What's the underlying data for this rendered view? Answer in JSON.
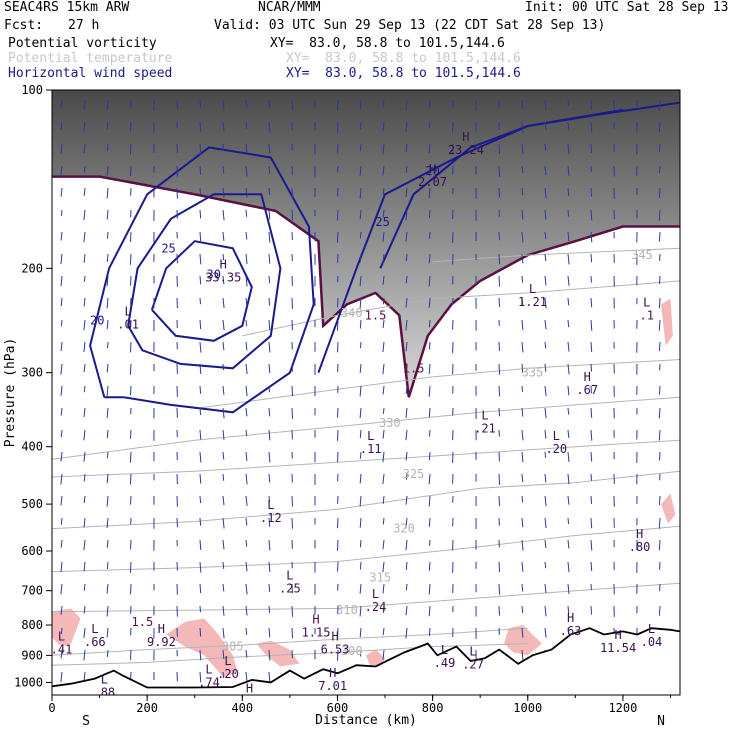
{
  "header": {
    "model": "SEAC4RS 15km ARW",
    "center": "NCAR/MMM",
    "init": "Init: 00 UTC Sat 28 Sep 13",
    "fcst_label": "Fcst:",
    "fcst_value": "27 h",
    "valid": "Valid: 03 UTC Sun 29 Sep 13 (22 CDT Sat 28 Sep 13)",
    "fields": [
      {
        "name": "Potential vorticity",
        "xy": "XY=  83.0, 58.8 to 101.5,144.6",
        "color": "#000000"
      },
      {
        "name": "Potential temperature",
        "xy": "XY=  83.0, 58.8 to 101.5,144.6",
        "color": "#c8c8c8"
      },
      {
        "name": "Horizontal wind speed",
        "xy": "XY=  83.0, 58.8 to 101.5,144.6",
        "color": "#1a1a8c"
      }
    ]
  },
  "chart_data": {
    "type": "cross-section",
    "title": "",
    "xlabel": "Distance (km)",
    "ylabel": "Pressure (hPa)",
    "xlim": [
      0,
      1320
    ],
    "ylim": [
      1050,
      100
    ],
    "y_scale": "log",
    "x_ticks": [
      0,
      200,
      400,
      600,
      800,
      1000,
      1200
    ],
    "y_ticks": [
      100,
      200,
      300,
      400,
      500,
      600,
      700,
      800,
      900,
      1000
    ],
    "x_end_labels": {
      "left": "S",
      "right": "N"
    },
    "colors": {
      "pv_fill": "#555555",
      "pv_contour": "#5a1040",
      "theta": "#b4b4b4",
      "wind": "#1a1a8c",
      "terrain": "#000000",
      "pink": "#f4b8b8",
      "vectors": "#2a3aa0"
    },
    "terrain": [
      {
        "x": 0,
        "p": 1015
      },
      {
        "x": 40,
        "p": 1005
      },
      {
        "x": 90,
        "p": 985
      },
      {
        "x": 130,
        "p": 955
      },
      {
        "x": 150,
        "p": 975
      },
      {
        "x": 200,
        "p": 1020
      },
      {
        "x": 300,
        "p": 1020
      },
      {
        "x": 380,
        "p": 1018
      },
      {
        "x": 420,
        "p": 990
      },
      {
        "x": 460,
        "p": 1000
      },
      {
        "x": 500,
        "p": 955
      },
      {
        "x": 530,
        "p": 985
      },
      {
        "x": 570,
        "p": 950
      },
      {
        "x": 600,
        "p": 965
      },
      {
        "x": 640,
        "p": 935
      },
      {
        "x": 680,
        "p": 940
      },
      {
        "x": 740,
        "p": 890
      },
      {
        "x": 790,
        "p": 860
      },
      {
        "x": 810,
        "p": 900
      },
      {
        "x": 850,
        "p": 870
      },
      {
        "x": 880,
        "p": 920
      },
      {
        "x": 910,
        "p": 910
      },
      {
        "x": 940,
        "p": 880
      },
      {
        "x": 980,
        "p": 930
      },
      {
        "x": 1010,
        "p": 900
      },
      {
        "x": 1050,
        "p": 880
      },
      {
        "x": 1090,
        "p": 830
      },
      {
        "x": 1130,
        "p": 810
      },
      {
        "x": 1160,
        "p": 830
      },
      {
        "x": 1200,
        "p": 820
      },
      {
        "x": 1230,
        "p": 830
      },
      {
        "x": 1260,
        "p": 810
      },
      {
        "x": 1300,
        "p": 815
      },
      {
        "x": 1320,
        "p": 820
      }
    ],
    "theta_contours": [
      {
        "label": "300",
        "label_at": [
          630,
          885
        ],
        "points": [
          [
            0,
            935
          ],
          [
            200,
            925
          ],
          [
            400,
            905
          ],
          [
            600,
            890
          ],
          [
            800,
            870
          ],
          [
            1000,
            860
          ]
        ]
      },
      {
        "label": "305",
        "label_at": [
          380,
          870
        ],
        "points": [
          [
            0,
            900
          ],
          [
            200,
            880
          ],
          [
            400,
            865
          ],
          [
            600,
            845
          ],
          [
            800,
            830
          ],
          [
            1000,
            810
          ]
        ]
      },
      {
        "label": "310",
        "label_at": [
          620,
          755
        ],
        "points": [
          [
            0,
            760
          ],
          [
            300,
            755
          ],
          [
            600,
            750
          ],
          [
            900,
            720
          ],
          [
            1100,
            700
          ],
          [
            1320,
            680
          ]
        ]
      },
      {
        "label": "315",
        "label_at": [
          690,
          665
        ],
        "points": [
          [
            0,
            650
          ],
          [
            300,
            640
          ],
          [
            600,
            625
          ],
          [
            900,
            590
          ],
          [
            1100,
            565
          ],
          [
            1320,
            545
          ]
        ]
      },
      {
        "label": "320",
        "label_at": [
          740,
          550
        ],
        "points": [
          [
            0,
            550
          ],
          [
            300,
            535
          ],
          [
            600,
            510
          ],
          [
            900,
            470
          ],
          [
            1100,
            460
          ],
          [
            1320,
            440
          ]
        ]
      },
      {
        "label": "325",
        "label_at": [
          760,
          445
        ],
        "points": [
          [
            0,
            450
          ],
          [
            300,
            440
          ],
          [
            600,
            425
          ],
          [
            900,
            410
          ],
          [
            1100,
            400
          ],
          [
            1320,
            390
          ]
        ]
      },
      {
        "label": "330",
        "label_at": [
          710,
          365
        ],
        "points": [
          [
            0,
            420
          ],
          [
            300,
            390
          ],
          [
            600,
            370
          ],
          [
            900,
            350
          ],
          [
            1100,
            340
          ],
          [
            1320,
            330
          ]
        ]
      },
      {
        "label": "335",
        "label_at": [
          1010,
          300
        ],
        "points": [
          [
            300,
            345
          ],
          [
            600,
            320
          ],
          [
            800,
            305
          ],
          [
            1000,
            295
          ],
          [
            1320,
            285
          ]
        ]
      },
      {
        "label": "340",
        "label_at": [
          630,
          238
        ],
        "points": [
          [
            400,
            260
          ],
          [
            600,
            240
          ],
          [
            800,
            225
          ],
          [
            1000,
            220
          ],
          [
            1320,
            210
          ]
        ]
      },
      {
        "label": "345",
        "label_at": [
          1240,
          190
        ],
        "points": [
          [
            800,
            195
          ],
          [
            1000,
            190
          ],
          [
            1320,
            185
          ]
        ]
      }
    ],
    "wind_contours": [
      {
        "label": "20",
        "label_at": [
          95,
          245
        ],
        "points": [
          [
            110,
            330
          ],
          [
            80,
            270
          ],
          [
            120,
            200
          ],
          [
            200,
            150
          ],
          [
            330,
            125
          ],
          [
            460,
            130
          ],
          [
            540,
            170
          ],
          [
            550,
            230
          ],
          [
            500,
            300
          ],
          [
            380,
            350
          ],
          [
            250,
            340
          ],
          [
            150,
            330
          ],
          [
            110,
            330
          ]
        ]
      },
      {
        "label": "25",
        "label_at": [
          245,
          185
        ],
        "points": [
          [
            160,
            250
          ],
          [
            180,
            200
          ],
          [
            250,
            165
          ],
          [
            340,
            150
          ],
          [
            440,
            150
          ],
          [
            480,
            200
          ],
          [
            460,
            260
          ],
          [
            380,
            295
          ],
          [
            270,
            290
          ],
          [
            190,
            275
          ],
          [
            160,
            250
          ]
        ]
      },
      {
        "label": "30",
        "label_at": [
          340,
          205
        ],
        "points": [
          [
            210,
            235
          ],
          [
            240,
            200
          ],
          [
            300,
            180
          ],
          [
            380,
            185
          ],
          [
            420,
            215
          ],
          [
            400,
            250
          ],
          [
            340,
            265
          ],
          [
            260,
            260
          ],
          [
            210,
            235
          ]
        ]
      },
      {
        "label": "20",
        "label_at": [
          800,
          137
        ],
        "points": [
          [
            560,
            300
          ],
          [
            640,
            200
          ],
          [
            700,
            150
          ],
          [
            850,
            130
          ],
          [
            1000,
            115
          ],
          [
            1150,
            110
          ],
          [
            1320,
            105
          ]
        ]
      },
      {
        "label": "25",
        "label_at": [
          695,
          167
        ],
        "points": [
          [
            690,
            200
          ],
          [
            760,
            150
          ],
          [
            880,
            125
          ],
          [
            1000,
            115
          ],
          [
            1200,
            108
          ]
        ]
      }
    ],
    "pv_region": [
      [
        0,
        100
      ],
      [
        1320,
        100
      ],
      [
        1320,
        170
      ],
      [
        1200,
        170
      ],
      [
        1100,
        180
      ],
      [
        1000,
        190
      ],
      [
        900,
        210
      ],
      [
        840,
        230
      ],
      [
        790,
        260
      ],
      [
        750,
        330
      ],
      [
        730,
        240
      ],
      [
        680,
        220
      ],
      [
        620,
        230
      ],
      [
        570,
        250
      ],
      [
        560,
        180
      ],
      [
        470,
        160
      ],
      [
        300,
        150
      ],
      [
        100,
        140
      ],
      [
        0,
        140
      ]
    ],
    "pink_areas": [
      [
        [
          0,
          760
        ],
        [
          40,
          750
        ],
        [
          60,
          780
        ],
        [
          40,
          860
        ],
        [
          20,
          870
        ],
        [
          0,
          840
        ]
      ],
      [
        [
          240,
          830
        ],
        [
          280,
          790
        ],
        [
          320,
          780
        ],
        [
          350,
          830
        ],
        [
          380,
          900
        ],
        [
          390,
          960
        ],
        [
          360,
          980
        ],
        [
          320,
          900
        ],
        [
          280,
          870
        ]
      ],
      [
        [
          430,
          860
        ],
        [
          460,
          850
        ],
        [
          500,
          880
        ],
        [
          520,
          930
        ],
        [
          480,
          940
        ],
        [
          450,
          900
        ]
      ],
      [
        [
          660,
          900
        ],
        [
          680,
          880
        ],
        [
          700,
          910
        ],
        [
          690,
          950
        ],
        [
          670,
          945
        ]
      ],
      [
        [
          960,
          810
        ],
        [
          990,
          800
        ],
        [
          1010,
          830
        ],
        [
          1030,
          860
        ],
        [
          1000,
          900
        ],
        [
          970,
          890
        ],
        [
          950,
          860
        ]
      ],
      [
        [
          1280,
          500
        ],
        [
          1300,
          480
        ],
        [
          1310,
          520
        ],
        [
          1295,
          540
        ]
      ],
      [
        [
          1280,
          230
        ],
        [
          1300,
          225
        ],
        [
          1305,
          260
        ],
        [
          1290,
          270
        ]
      ]
    ],
    "annotations": [
      {
        "text": "H",
        "sub": "2.07",
        "x": 800,
        "p": 138
      },
      {
        "text": "H",
        "sub": "23.24",
        "x": 870,
        "p": 122
      },
      {
        "text": "H",
        "sub": "33.35",
        "x": 360,
        "p": 200
      },
      {
        "text": "L",
        "sub": ".01",
        "x": 160,
        "p": 240
      },
      {
        "text": "L",
        "sub": "1.21",
        "x": 1010,
        "p": 220
      },
      {
        "text": "L",
        "sub": ".1",
        "x": 1250,
        "p": 232
      },
      {
        "text": "H",
        "sub": ".67",
        "x": 1125,
        "p": 310
      },
      {
        "text": "L",
        "sub": ".21",
        "x": 910,
        "p": 360
      },
      {
        "text": "L",
        "sub": ".20",
        "x": 1060,
        "p": 390
      },
      {
        "text": "L",
        "sub": ".11",
        "x": 670,
        "p": 390
      },
      {
        "text": "L",
        "sub": ".12",
        "x": 460,
        "p": 510
      },
      {
        "text": "H",
        "sub": ".80",
        "x": 1235,
        "p": 570
      },
      {
        "text": "L",
        "sub": ".25",
        "x": 500,
        "p": 670
      },
      {
        "text": "L",
        "sub": ".24",
        "x": 680,
        "p": 720
      },
      {
        "text": "H",
        "sub": "1.15",
        "x": 555,
        "p": 795
      },
      {
        "text": "H",
        "sub": "9.92",
        "x": 230,
        "p": 825
      },
      {
        "text": "H",
        "sub": ".63",
        "x": 1090,
        "p": 790
      },
      {
        "text": "L",
        "sub": ".66",
        "x": 90,
        "p": 825
      },
      {
        "text": "L",
        "sub": ".41",
        "x": 20,
        "p": 850
      },
      {
        "text": "H",
        "sub": "6.53",
        "x": 595,
        "p": 850
      },
      {
        "text": "L",
        "sub": ".04",
        "x": 1260,
        "p": 825
      },
      {
        "text": "H",
        "sub": "11.54",
        "x": 1190,
        "p": 845
      },
      {
        "text": "L",
        "sub": ".49",
        "x": 825,
        "p": 895
      },
      {
        "text": "L",
        "sub": ".27",
        "x": 885,
        "p": 900
      },
      {
        "text": "L",
        "sub": ".20",
        "x": 370,
        "p": 935
      },
      {
        "text": "L",
        "sub": ".74",
        "x": 330,
        "p": 965
      },
      {
        "text": "H",
        "sub": "7.01",
        "x": 590,
        "p": 980
      },
      {
        "text": "L",
        "sub": ".88",
        "x": 110,
        "p": 1005
      },
      {
        "text": "H",
        "sub": "9.60",
        "x": 415,
        "p": 1040
      },
      {
        "text": "",
        "sub": "10",
        "x": 40,
        "p": 1035
      }
    ],
    "contour_labels": [
      {
        "text": "1.5",
        "x": 190,
        "p": 790,
        "color": "#5a1040"
      },
      {
        "text": "1.5",
        "x": 680,
        "p": 240,
        "color": "#5a1040"
      },
      {
        "text": "1.5",
        "x": 760,
        "p": 295,
        "color": "#5a1040"
      }
    ]
  }
}
